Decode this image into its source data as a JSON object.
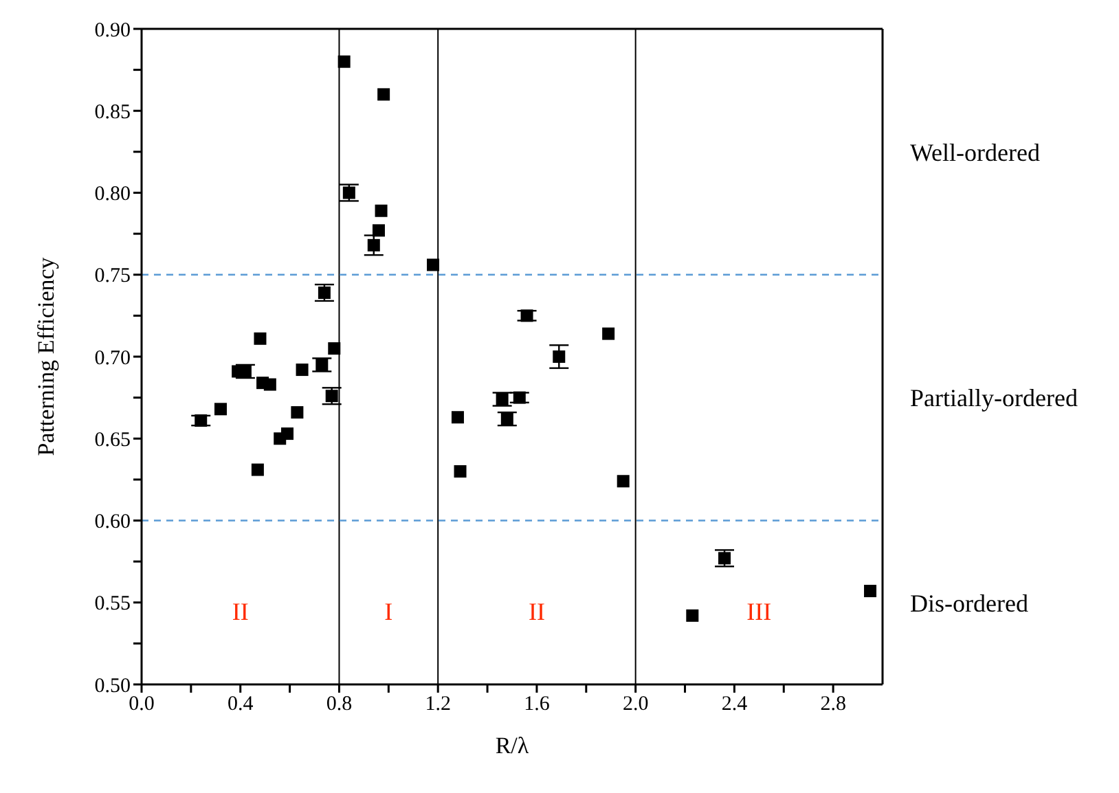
{
  "chart_data": {
    "type": "scatter",
    "xlabel": "R/λ",
    "ylabel": "Patterning Efficiency",
    "xlim": [
      0,
      3.0
    ],
    "ylim": [
      0.5,
      0.9
    ],
    "xticks": [
      {
        "value": 0,
        "label": "0.0"
      },
      {
        "value": 0.2,
        "label": null
      },
      0.4,
      {
        "value": 0.6,
        "label": null
      },
      0.8,
      {
        "value": 1.0,
        "label": null
      },
      1.2,
      {
        "value": 1.4,
        "label": null
      },
      1.6,
      {
        "value": 1.8,
        "label": null
      },
      {
        "value": 2.0,
        "label": "2.0"
      },
      {
        "value": 2.2,
        "label": null
      },
      2.4,
      {
        "value": 2.6,
        "label": null
      },
      2.8
    ],
    "yticks": [
      {
        "value": 0.5,
        "label": "0.50"
      },
      {
        "value": 0.525,
        "label": null
      },
      0.55,
      {
        "value": 0.575,
        "label": null
      },
      {
        "value": 0.6,
        "label": "0.60"
      },
      {
        "value": 0.625,
        "label": null
      },
      0.65,
      {
        "value": 0.675,
        "label": null
      },
      {
        "value": 0.7,
        "label": "0.70"
      },
      {
        "value": 0.725,
        "label": null
      },
      0.75,
      {
        "value": 0.775,
        "label": null
      },
      {
        "value": 0.8,
        "label": "0.80"
      },
      {
        "value": 0.825,
        "label": null
      },
      0.85,
      {
        "value": 0.875,
        "label": null
      },
      {
        "value": 0.9,
        "label": "0.90"
      }
    ],
    "marker": "square",
    "series": [
      {
        "color": "#000000",
        "x": [
          0.24,
          0.32,
          0.39,
          0.42,
          0.48,
          0.49,
          0.52,
          0.47,
          0.56,
          0.59,
          0.63,
          0.65,
          0.74,
          0.73,
          0.78,
          0.77,
          0.82,
          0.84,
          0.94,
          0.96,
          0.97,
          0.98,
          1.18,
          1.28,
          1.29,
          1.46,
          1.48,
          1.53,
          1.56,
          1.69,
          1.89,
          1.95,
          2.36,
          2.23,
          2.95
        ],
        "values": [
          0.661,
          0.668,
          0.691,
          0.691,
          0.711,
          0.684,
          0.683,
          0.631,
          0.65,
          0.653,
          0.666,
          0.692,
          0.739,
          0.695,
          0.705,
          0.676,
          0.88,
          0.8,
          0.768,
          0.777,
          0.789,
          0.86,
          0.756,
          0.663,
          0.63,
          0.674,
          0.662,
          0.675,
          0.725,
          0.7,
          0.714,
          0.624,
          0.577,
          0.542,
          0.557
        ],
        "errors": [
          0.003,
          null,
          null,
          0.004,
          null,
          null,
          null,
          null,
          null,
          null,
          null,
          null,
          0.005,
          0.004,
          null,
          0.005,
          null,
          0.005,
          0.006,
          null,
          null,
          null,
          null,
          null,
          null,
          0.004,
          0.004,
          0.003,
          0.003,
          0.007,
          null,
          null,
          0.005,
          null,
          null
        ]
      }
    ],
    "ref_lines": [
      {
        "axis": "x",
        "value": 0.8,
        "color": "#000000",
        "line_style": "solid"
      },
      {
        "axis": "x",
        "value": 1.2,
        "color": "#000000",
        "line_style": "solid"
      },
      {
        "axis": "x",
        "value": 2.0,
        "color": "#000000",
        "line_style": "solid"
      },
      {
        "axis": "y",
        "value": 0.75,
        "color": "#5b9bd5",
        "line_style": "dashed"
      },
      {
        "axis": "y",
        "value": 0.6,
        "color": "#5b9bd5",
        "line_style": "dashed"
      }
    ],
    "annotations": [
      "II",
      "I",
      "II",
      "III",
      "Well-ordered",
      "Partially-ordered",
      "Dis-ordered"
    ]
  }
}
